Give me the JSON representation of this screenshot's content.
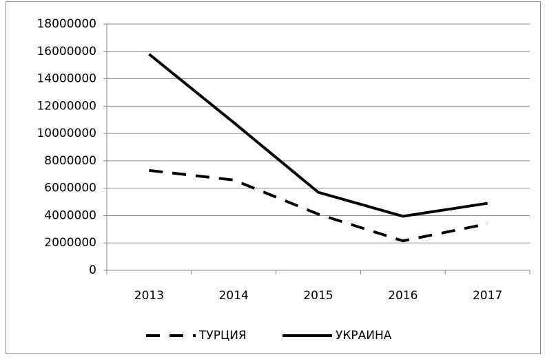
{
  "chart_data": {
    "type": "line",
    "categories": [
      "2013",
      "2014",
      "2015",
      "2016",
      "2017"
    ],
    "series": [
      {
        "name": "ТУРЦИЯ",
        "color": "#000000",
        "style": "dashed",
        "values": [
          7300000,
          6600000,
          4100000,
          2150000,
          3400000
        ]
      },
      {
        "name": "УКРАИНА",
        "color": "#000000",
        "style": "solid",
        "values": [
          15800000,
          10800000,
          5700000,
          3950000,
          4900000
        ]
      }
    ],
    "ylim": [
      0,
      18000000
    ],
    "yticks": [
      0,
      2000000,
      4000000,
      6000000,
      8000000,
      10000000,
      12000000,
      14000000,
      16000000,
      18000000
    ],
    "grid": true,
    "legend": "bottom"
  }
}
